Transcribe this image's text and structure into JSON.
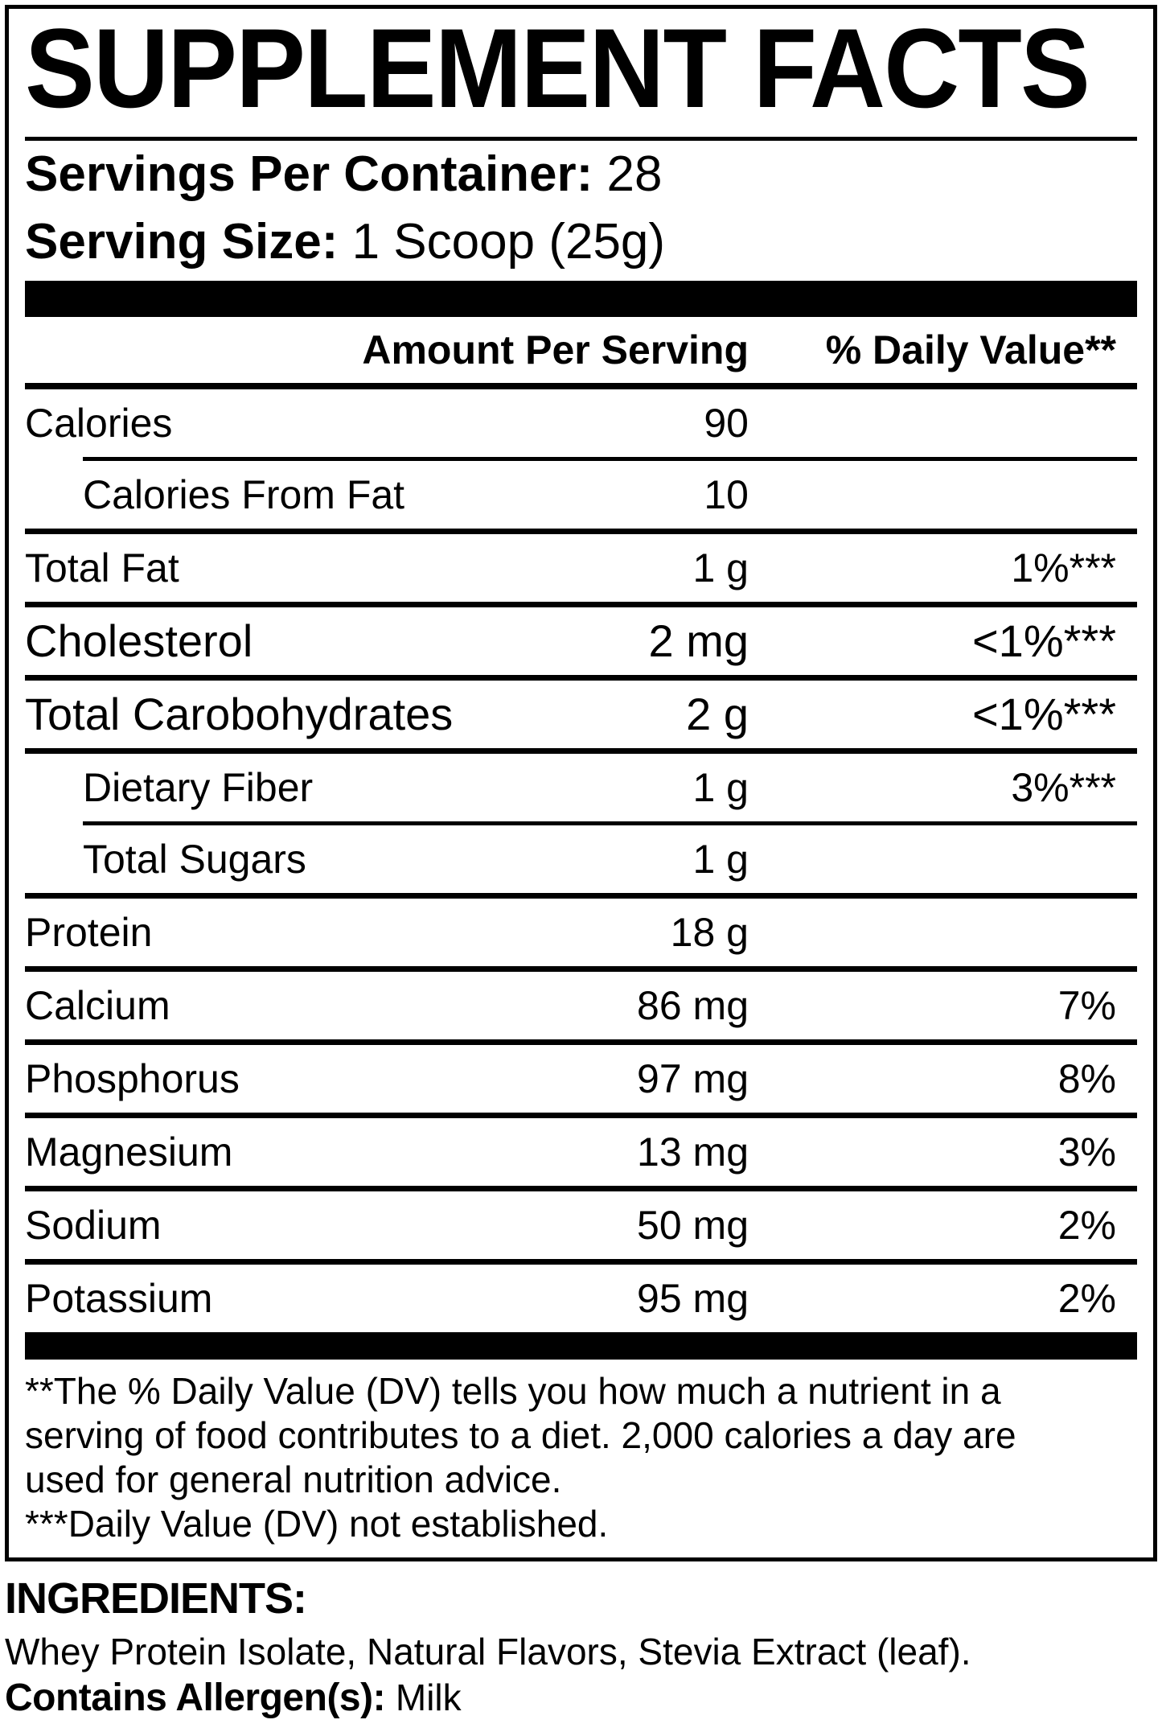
{
  "colors": {
    "text": "#000000",
    "background": "#ffffff",
    "rule": "#000000"
  },
  "panel": {
    "title": "SUPPLEMENT FACTS",
    "servings_label": "Servings Per Container:",
    "servings_value": "28",
    "serving_size_label": "Serving Size:",
    "serving_size_value": "1 Scoop (25g)",
    "col_amount_header": "Amount Per Serving",
    "col_dv_header": "% Daily Value**",
    "rows": [
      {
        "label": "Calories",
        "amount": "90",
        "dv": ""
      },
      {
        "label": "Calories From Fat",
        "amount": "10",
        "dv": ""
      },
      {
        "label": "Total Fat",
        "amount": "1 g",
        "dv": "1%***"
      },
      {
        "label": "Cholesterol",
        "amount": "2 mg",
        "dv": "<1%***"
      },
      {
        "label": "Total Carobohydrates",
        "amount": "2 g",
        "dv": "<1%***"
      },
      {
        "label": "Dietary Fiber",
        "amount": "1 g",
        "dv": "3%***"
      },
      {
        "label": "Total Sugars",
        "amount": "1 g",
        "dv": ""
      },
      {
        "label": "Protein",
        "amount": "18 g",
        "dv": ""
      },
      {
        "label": "Calcium",
        "amount": "86 mg",
        "dv": "7%"
      },
      {
        "label": "Phosphorus",
        "amount": "97 mg",
        "dv": "8%"
      },
      {
        "label": "Magnesium",
        "amount": "13 mg",
        "dv": "3%"
      },
      {
        "label": "Sodium",
        "amount": "50 mg",
        "dv": "2%"
      },
      {
        "label": "Potassium",
        "amount": "95 mg",
        "dv": "2%"
      }
    ],
    "footnote_lines": [
      "**The % Daily Value (DV) tells you how much a nutrient in a",
      "serving of food contributes to a diet. 2,000 calories a day are",
      "used for general nutrition advice.",
      "***Daily Value (DV) not established."
    ]
  },
  "ingredients": {
    "heading": "INGREDIENTS:",
    "list": "Whey Protein Isolate, Natural Flavors, Stevia Extract (leaf).",
    "allergen_label": "Contains Allergen(s):",
    "allergen_value": "Milk"
  }
}
